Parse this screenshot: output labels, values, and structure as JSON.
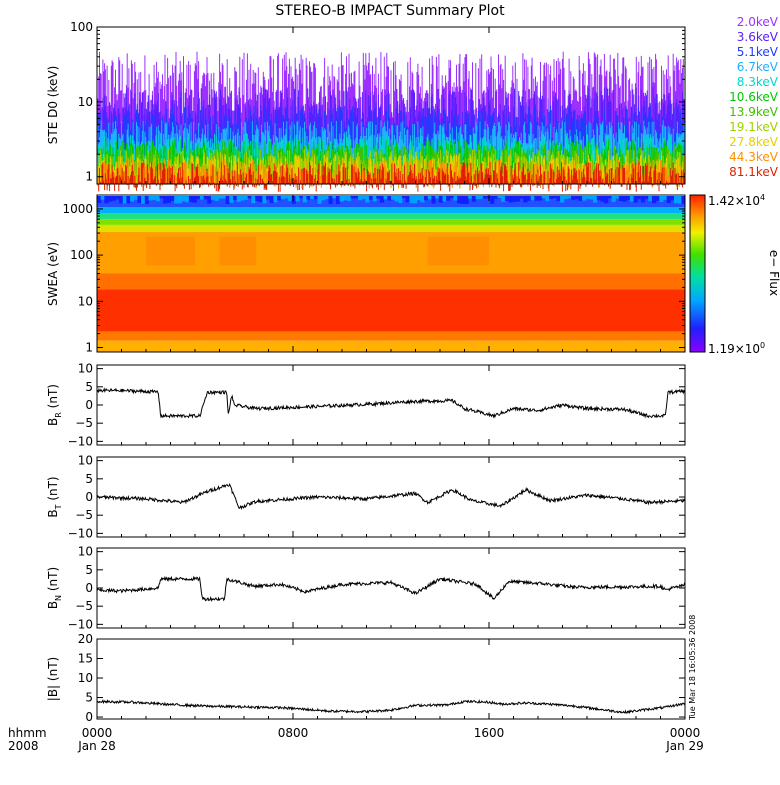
{
  "chart_data": {
    "title": "STEREO-B IMPACT Summary Plot",
    "x_axis": {
      "ticks": [
        "0000",
        "0800",
        "1600",
        "0000"
      ],
      "hour_values": [
        0,
        8,
        16,
        24
      ],
      "dates": [
        "Jan 28",
        "Jan 29"
      ],
      "left_labels": [
        "hhmm",
        "2008"
      ]
    },
    "timestamp": "Tue Mar 18 16:05:36 2008",
    "panels": [
      {
        "id": "ste",
        "type": "line",
        "ylabel": "STE D0 (keV)",
        "yscale": "log",
        "ylim": [
          0.8,
          100
        ],
        "ticks": [
          "1",
          "10",
          "100"
        ],
        "tick_values": [
          1,
          10,
          100
        ],
        "series": [
          {
            "name": "2.0keV",
            "color": "#9b30ff",
            "typical": 15,
            "spread": 0.45
          },
          {
            "name": "3.6keV",
            "color": "#5a1fff",
            "typical": 6.5,
            "spread": 0.35
          },
          {
            "name": "5.1keV",
            "color": "#1f3cff",
            "typical": 4.2,
            "spread": 0.3
          },
          {
            "name": "6.7keV",
            "color": "#1fb0ff",
            "typical": 3.0,
            "spread": 0.25
          },
          {
            "name": "8.3keV",
            "color": "#00d8c8",
            "typical": 2.3,
            "spread": 0.2
          },
          {
            "name": "10.6keV",
            "color": "#00c800",
            "typical": 1.9,
            "spread": 0.2
          },
          {
            "name": "13.9keV",
            "color": "#40c000",
            "typical": 1.6,
            "spread": 0.2
          },
          {
            "name": "19.1keV",
            "color": "#a0d000",
            "typical": 1.4,
            "spread": 0.2
          },
          {
            "name": "27.8keV",
            "color": "#e8d000",
            "typical": 1.2,
            "spread": 0.2
          },
          {
            "name": "44.3keV",
            "color": "#ff9000",
            "typical": 1.05,
            "spread": 0.2
          },
          {
            "name": "81.1keV",
            "color": "#e02000",
            "typical": 0.95,
            "spread": 0.2
          }
        ]
      },
      {
        "id": "swea",
        "type": "heatmap",
        "ylabel": "SWEA (eV)",
        "yscale": "log",
        "ylim": [
          0.8,
          2000
        ],
        "ticks": [
          "1",
          "10",
          "100",
          "1000"
        ],
        "tick_values": [
          1,
          10,
          100,
          1000
        ],
        "colorbar": {
          "label": "e− Flux",
          "max_label": "1.42×10",
          "max_exp": "4",
          "min_label": "1.19×10",
          "min_exp": "0",
          "scale": "log"
        }
      },
      {
        "id": "br",
        "type": "line",
        "ylabel": "B",
        "ysub": "R",
        "yunit": " (nT)",
        "ylim": [
          -11,
          11
        ],
        "ticks": [
          "10",
          "5",
          "0",
          "−5",
          "−10"
        ],
        "tick_values": [
          10,
          5,
          0,
          -5,
          -10
        ],
        "knots": [
          [
            0,
            4
          ],
          [
            0.9,
            4
          ],
          [
            2.5,
            3.6
          ],
          [
            2.6,
            -3
          ],
          [
            4.2,
            -3
          ],
          [
            4.5,
            3.5
          ],
          [
            5.3,
            3.5
          ],
          [
            5.35,
            -3
          ],
          [
            5.5,
            2.7
          ],
          [
            5.6,
            0
          ],
          [
            6.5,
            -1
          ],
          [
            9,
            -0.4
          ],
          [
            11,
            0.2
          ],
          [
            13,
            1
          ],
          [
            14.5,
            1.2
          ],
          [
            15,
            -1
          ],
          [
            16.2,
            -3
          ],
          [
            17,
            -1
          ],
          [
            18,
            -1.5
          ],
          [
            19,
            0
          ],
          [
            20,
            -1
          ],
          [
            21.5,
            -1.2
          ],
          [
            22.5,
            -3
          ],
          [
            23.2,
            -3
          ],
          [
            23.3,
            3.5
          ],
          [
            24,
            3.8
          ]
        ]
      },
      {
        "id": "bt",
        "type": "line",
        "ylabel": "B",
        "ysub": "T",
        "yunit": " (nT)",
        "ylim": [
          -11,
          11
        ],
        "ticks": [
          "10",
          "5",
          "0",
          "−5",
          "−10"
        ],
        "tick_values": [
          10,
          5,
          0,
          -5,
          -10
        ],
        "knots": [
          [
            0,
            0
          ],
          [
            2,
            -0.5
          ],
          [
            3.5,
            -1.5
          ],
          [
            4.5,
            1.5
          ],
          [
            5.4,
            3.5
          ],
          [
            5.8,
            -3
          ],
          [
            6.5,
            -1.2
          ],
          [
            9,
            0
          ],
          [
            11,
            -0.5
          ],
          [
            13,
            1
          ],
          [
            13.5,
            -1.5
          ],
          [
            14.5,
            2
          ],
          [
            15.3,
            -1
          ],
          [
            16.5,
            -2.5
          ],
          [
            17.5,
            2
          ],
          [
            18.5,
            -1
          ],
          [
            20,
            0.5
          ],
          [
            21.5,
            -0.5
          ],
          [
            22.5,
            -1.5
          ],
          [
            24,
            -1
          ]
        ]
      },
      {
        "id": "bn",
        "type": "line",
        "ylabel": "B",
        "ysub": "N",
        "yunit": " (nT)",
        "ylim": [
          -11,
          11
        ],
        "ticks": [
          "10",
          "5",
          "0",
          "−5",
          "−10"
        ],
        "tick_values": [
          10,
          5,
          0,
          -5,
          -10
        ],
        "knots": [
          [
            0,
            -0.6
          ],
          [
            1,
            -0.8
          ],
          [
            2.5,
            0
          ],
          [
            2.6,
            2.5
          ],
          [
            4.2,
            2.5
          ],
          [
            4.3,
            -3
          ],
          [
            5.2,
            -3
          ],
          [
            5.3,
            2.5
          ],
          [
            6.4,
            0.5
          ],
          [
            7.5,
            1
          ],
          [
            8.5,
            -1
          ],
          [
            10,
            1
          ],
          [
            12,
            1.5
          ],
          [
            13,
            -1.5
          ],
          [
            14,
            2.5
          ],
          [
            15.5,
            1
          ],
          [
            16.2,
            -3
          ],
          [
            16.8,
            1.8
          ],
          [
            18.2,
            1.2
          ],
          [
            19.5,
            0.2
          ],
          [
            21.5,
            0.3
          ],
          [
            23,
            0.5
          ],
          [
            23.2,
            -0.5
          ],
          [
            24,
            0.8
          ]
        ]
      },
      {
        "id": "bmag",
        "type": "line",
        "ylabel": "|B| (nT)",
        "ylim": [
          -0.5,
          20
        ],
        "ticks": [
          "20",
          "15",
          "10",
          "5",
          "0"
        ],
        "tick_values": [
          20,
          15,
          10,
          5,
          0
        ],
        "knots": [
          [
            0,
            4
          ],
          [
            1.5,
            3.8
          ],
          [
            3,
            3.2
          ],
          [
            4.5,
            2.8
          ],
          [
            6,
            2.6
          ],
          [
            7.5,
            2.4
          ],
          [
            8.5,
            2
          ],
          [
            9.5,
            1.5
          ],
          [
            11,
            1.4
          ],
          [
            12,
            1.8
          ],
          [
            13,
            3
          ],
          [
            14.3,
            3.1
          ],
          [
            15,
            4
          ],
          [
            16,
            3.8
          ],
          [
            16.5,
            3.3
          ],
          [
            17.5,
            3.6
          ],
          [
            18.5,
            3.3
          ],
          [
            19.5,
            2.8
          ],
          [
            20.5,
            2
          ],
          [
            21.5,
            1.2
          ],
          [
            22.5,
            2
          ],
          [
            23.2,
            2.5
          ],
          [
            24,
            3.5
          ]
        ]
      }
    ]
  }
}
